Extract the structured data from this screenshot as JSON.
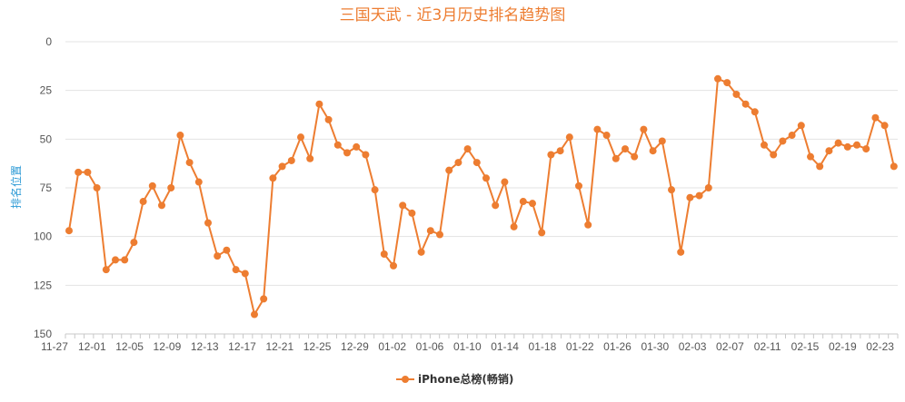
{
  "colors": {
    "series": "#ED7D31",
    "title": "#ED7D31",
    "ylabel": "#2E9BD6",
    "grid": "#e3e3e3",
    "axis": "#c8c8c8"
  },
  "chart_data": {
    "type": "line",
    "title": "三国天武 - 近3月历史排名趋势图",
    "xlabel": "",
    "ylabel": "排名位置",
    "ylim": [
      0,
      150
    ],
    "y_reversed": true,
    "y_ticks": [
      0,
      25,
      50,
      75,
      100,
      125,
      150
    ],
    "grid": true,
    "legend_position": "bottom",
    "x_tick_labels": [
      "11-27",
      "12-01",
      "12-05",
      "12-09",
      "12-13",
      "12-17",
      "12-21",
      "12-25",
      "12-29",
      "01-02",
      "01-06",
      "01-10",
      "01-14",
      "01-18",
      "01-22",
      "01-26",
      "01-30",
      "02-03",
      "02-07",
      "02-11",
      "02-15",
      "02-19",
      "02-23"
    ],
    "series": [
      {
        "name": "iPhone总榜(畅销)",
        "values": [
          97,
          67,
          67,
          75,
          117,
          112,
          112,
          103,
          82,
          74,
          84,
          75,
          48,
          62,
          72,
          93,
          110,
          107,
          117,
          119,
          140,
          132,
          70,
          64,
          61,
          49,
          60,
          32,
          40,
          53,
          57,
          54,
          58,
          76,
          109,
          115,
          84,
          88,
          108,
          97,
          99,
          66,
          62,
          55,
          62,
          70,
          84,
          72,
          95,
          82,
          83,
          98,
          58,
          56,
          49,
          74,
          94,
          45,
          48,
          60,
          55,
          59,
          45,
          56,
          51,
          76,
          108,
          80,
          79,
          75,
          19,
          21,
          27,
          32,
          36,
          53,
          58,
          51,
          48,
          43,
          59,
          64,
          56,
          52,
          54,
          53,
          55,
          39,
          43,
          64
        ]
      }
    ]
  }
}
